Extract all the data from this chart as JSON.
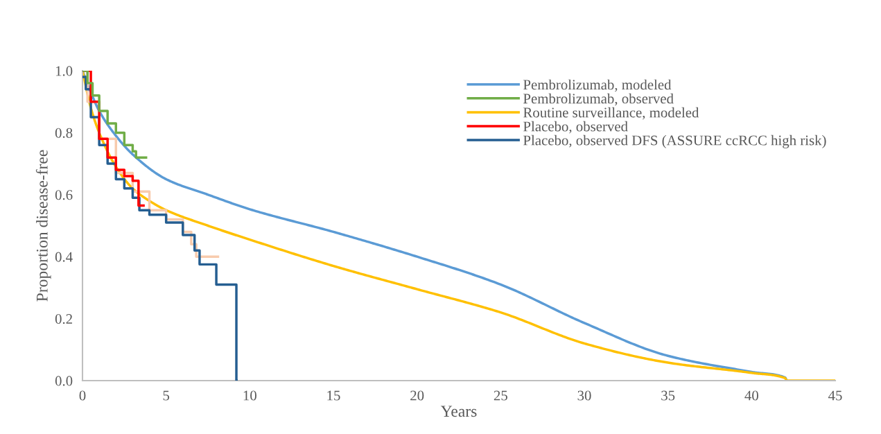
{
  "chart_data": {
    "type": "line",
    "xlabel": "Years",
    "ylabel": "Proportion disease-free",
    "xlim": [
      0,
      45
    ],
    "xticks": [
      0,
      5,
      10,
      15,
      20,
      25,
      30,
      35,
      40,
      45
    ],
    "ylim": [
      0,
      1.0
    ],
    "yticks": [
      {
        "value": 0,
        "label": "0.0"
      },
      0.2,
      0.4,
      0.6,
      0.8,
      {
        "value": 1.0,
        "label": "1.0"
      }
    ],
    "grid": false,
    "legend": "top right",
    "line_style": "solid",
    "marker": "none",
    "series": [
      {
        "name": "Pembrolizumab, modeled",
        "color": "#5b9bd5",
        "x": [
          0,
          0.5,
          1,
          2,
          3,
          5,
          7.5,
          10,
          15,
          20,
          25,
          30,
          35,
          40,
          42,
          42.1
        ],
        "values": [
          1.0,
          0.93,
          0.87,
          0.79,
          0.73,
          0.65,
          0.6,
          0.553,
          0.48,
          0.4,
          0.31,
          0.186,
          0.08,
          0.028,
          0.01,
          0.0
        ]
      },
      {
        "name": "Pembrolizumab, observed",
        "color": "#70ad47",
        "type": "step",
        "x": [
          0,
          0.3,
          0.6,
          1,
          1.5,
          2,
          2.5,
          3,
          3.2,
          3.8
        ],
        "values": [
          1.0,
          0.96,
          0.92,
          0.87,
          0.83,
          0.8,
          0.76,
          0.74,
          0.72,
          0.72
        ]
      },
      {
        "name": "Routine surveillance, modeled",
        "color": "#ffc000",
        "x": [
          0,
          0.5,
          1,
          2,
          3,
          4,
          5,
          7.5,
          10,
          15,
          20,
          25,
          30,
          35,
          40,
          42,
          42.1,
          45
        ],
        "values": [
          1.0,
          0.88,
          0.8,
          0.69,
          0.62,
          0.58,
          0.55,
          0.5,
          0.455,
          0.37,
          0.295,
          0.22,
          0.12,
          0.058,
          0.025,
          0.008,
          0.0,
          0.0
        ]
      },
      {
        "name": "Placebo, observed",
        "color": "#ff0000",
        "type": "step",
        "x": [
          0,
          0.2,
          0.5,
          1,
          1.5,
          2,
          2.5,
          3,
          3.35,
          3.65
        ],
        "values": [
          1.0,
          1.0,
          0.9,
          0.78,
          0.72,
          0.68,
          0.66,
          0.645,
          0.565,
          0.565
        ]
      },
      {
        "name": "Placebo, observed DFS (ASSURE ccRCC high risk)",
        "color": "#255e91",
        "type": "step",
        "x": [
          0,
          0.2,
          0.5,
          1,
          1.5,
          2,
          2.5,
          3,
          3.4,
          4,
          5,
          6,
          6.7,
          7,
          8,
          9.2,
          9.21
        ],
        "values": [
          0.98,
          0.94,
          0.85,
          0.76,
          0.7,
          0.65,
          0.62,
          0.59,
          0.55,
          0.535,
          0.51,
          0.47,
          0.42,
          0.375,
          0.31,
          0.0,
          0.0
        ]
      },
      {
        "color": "#f8cbad",
        "type": "step",
        "x": [
          0,
          0.3,
          1,
          2,
          3,
          4,
          5,
          6,
          6.5,
          6.8,
          8.1
        ],
        "values": [
          1.0,
          0.9,
          0.78,
          0.67,
          0.61,
          0.55,
          0.52,
          0.48,
          0.44,
          0.4,
          0.4
        ]
      }
    ]
  }
}
